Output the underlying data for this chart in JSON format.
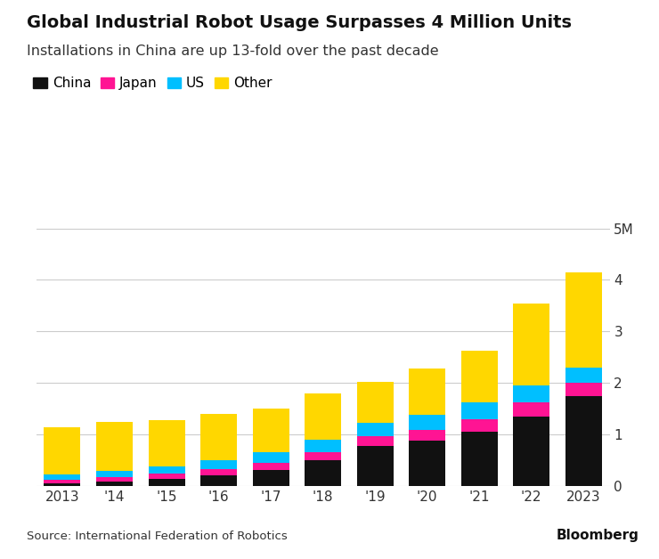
{
  "years": [
    "2013",
    "'14",
    "'15",
    "'16",
    "'17",
    "'18",
    "'19",
    "'20",
    "'21",
    "'22",
    "2023"
  ],
  "china": [
    0.06,
    0.1,
    0.15,
    0.22,
    0.32,
    0.5,
    0.78,
    0.88,
    1.05,
    1.35,
    1.75
  ],
  "japan": [
    0.07,
    0.08,
    0.1,
    0.12,
    0.14,
    0.17,
    0.2,
    0.22,
    0.25,
    0.28,
    0.25
  ],
  "us": [
    0.1,
    0.12,
    0.14,
    0.17,
    0.2,
    0.23,
    0.25,
    0.28,
    0.32,
    0.32,
    0.3
  ],
  "other": [
    0.92,
    0.95,
    0.9,
    0.9,
    0.85,
    0.9,
    0.8,
    0.9,
    1.0,
    1.6,
    1.85
  ],
  "colors": {
    "china": "#111111",
    "japan": "#FF1493",
    "us": "#00BFFF",
    "other": "#FFD700"
  },
  "title": "Global Industrial Robot Usage Surpasses 4 Million Units",
  "subtitle": "Installations in China are up 13-fold over the past decade",
  "source": "Source: International Federation of Robotics",
  "ylabel_ticks": [
    0,
    1,
    2,
    3,
    4,
    5
  ],
  "ylabel_labels": [
    "0",
    "1",
    "2",
    "3",
    "4",
    "5M"
  ],
  "ylim": [
    0,
    5.2
  ],
  "background_color": "#ffffff",
  "legend_labels": [
    "China",
    "Japan",
    "US",
    "Other"
  ]
}
